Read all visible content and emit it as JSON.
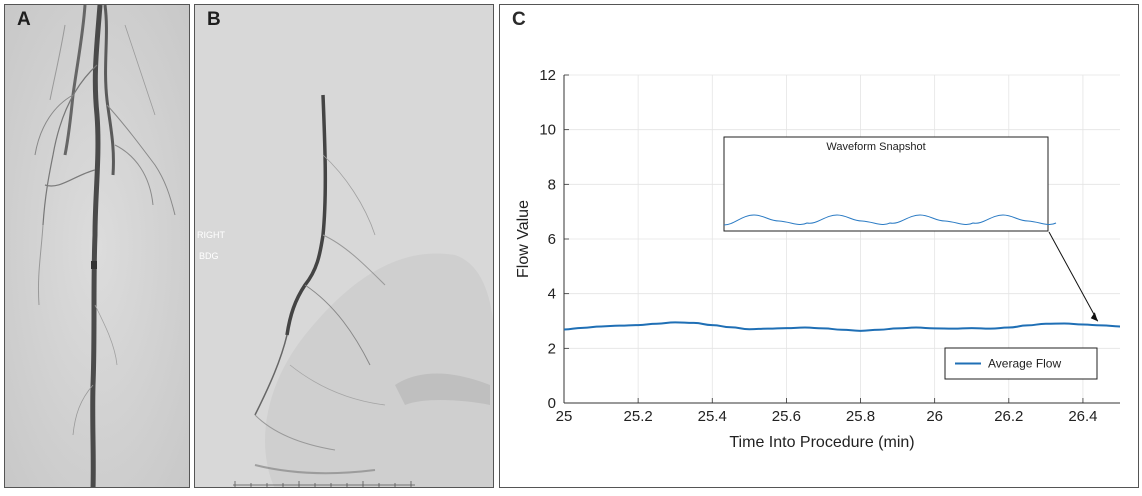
{
  "panels": {
    "a": {
      "letter": "A"
    },
    "b": {
      "letter": "B",
      "overlay_lines": [
        "RIGHT",
        "BDG"
      ]
    },
    "c": {
      "letter": "C"
    }
  },
  "chart_data": {
    "type": "line",
    "title": "",
    "xlabel": "Time Into Procedure (min)",
    "ylabel": "Flow Value",
    "xlim": [
      25,
      26.5
    ],
    "ylim": [
      0,
      12
    ],
    "xticks": [
      "25",
      "25.2",
      "25.4",
      "25.6",
      "25.8",
      "26",
      "26.2",
      "26.4"
    ],
    "yticks": [
      "0",
      "2",
      "4",
      "6",
      "8",
      "10",
      "12"
    ],
    "grid": true,
    "legend_position": "bottom-right",
    "series": [
      {
        "name": "Average Flow",
        "color": "#1f6fb5",
        "x": [
          25.0,
          25.05,
          25.1,
          25.15,
          25.2,
          25.25,
          25.3,
          25.35,
          25.4,
          25.45,
          25.5,
          25.55,
          25.6,
          25.65,
          25.7,
          25.75,
          25.8,
          25.85,
          25.9,
          25.95,
          26.0,
          26.05,
          26.1,
          26.15,
          26.2,
          26.25,
          26.3,
          26.35,
          26.4,
          26.45,
          26.5
        ],
        "y": [
          2.69,
          2.75,
          2.8,
          2.83,
          2.85,
          2.9,
          2.95,
          2.93,
          2.85,
          2.77,
          2.7,
          2.72,
          2.74,
          2.76,
          2.73,
          2.68,
          2.64,
          2.68,
          2.73,
          2.76,
          2.73,
          2.72,
          2.74,
          2.72,
          2.76,
          2.84,
          2.9,
          2.91,
          2.87,
          2.84,
          2.8
        ]
      }
    ],
    "inset": {
      "title": "Waveform Snapshot",
      "annotation": "arrow from inset to the curve near x = 26.45"
    }
  }
}
